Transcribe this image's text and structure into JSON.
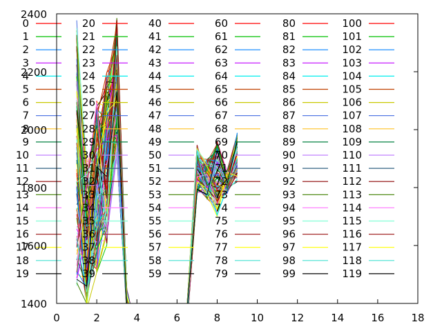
{
  "chart_data": {
    "type": "line",
    "title": "",
    "xlabel": "",
    "ylabel": "",
    "xlim": [
      0,
      18
    ],
    "ylim": [
      1400,
      2400
    ],
    "x_ticks": [
      "0",
      "2",
      "4",
      "6",
      "8",
      "10",
      "12",
      "14",
      "16",
      "18"
    ],
    "y_ticks": [
      "1400",
      "1600",
      "1800",
      "2000",
      "2200",
      "2400"
    ],
    "grid": false,
    "legend": {
      "placement": "top-left, six columns",
      "visible_names": [
        "0",
        "1",
        "2",
        "3",
        "4",
        "5",
        "6",
        "7",
        "8",
        "9",
        "10",
        "11",
        "12",
        "13",
        "14",
        "15",
        "16",
        "17",
        "18",
        "19",
        "20",
        "21",
        "22",
        "23",
        "24",
        "25",
        "26",
        "27",
        "28",
        "29",
        "30",
        "31",
        "32",
        "33",
        "34",
        "35",
        "36",
        "37",
        "38",
        "39",
        "40",
        "41",
        "42",
        "43",
        "44",
        "45",
        "46",
        "47",
        "48",
        "49",
        "50",
        "51",
        "52",
        "53",
        "54",
        "55",
        "56",
        "57",
        "58",
        "59",
        "60",
        "61",
        "62",
        "63",
        "64",
        "65",
        "66",
        "67",
        "68",
        "69",
        "70",
        "71",
        "72",
        "73",
        "74",
        "75",
        "76",
        "77",
        "78",
        "79",
        "80",
        "81",
        "82",
        "83",
        "84",
        "85",
        "86",
        "87",
        "88",
        "89",
        "90",
        "91",
        "92",
        "93",
        "94",
        "95",
        "96",
        "97",
        "98",
        "99",
        "100",
        "101",
        "102",
        "103",
        "104",
        "105",
        "106",
        "107",
        "108",
        "109",
        "110",
        "111",
        "112",
        "113",
        "114",
        "115",
        "116",
        "117",
        "118",
        "119"
      ],
      "colors": [
        "#ff0000",
        "#00c000",
        "#0080ff",
        "#c000ff",
        "#00eeee",
        "#c04000",
        "#c8c800",
        "#4169e1",
        "#ffc020",
        "#008040",
        "#c080ff",
        "#306080",
        "#8b0000",
        "#408000",
        "#ff80ff",
        "#7fffd4",
        "#a52a2a",
        "#ffff00",
        "#40e0d0",
        "#000000"
      ]
    },
    "series_note": "120 series numbered 0-119; values read approximately. Each series spans x=1..9.",
    "x": [
      1,
      1.5,
      2,
      2.5,
      3,
      3.5,
      4,
      4.5,
      5,
      5.5,
      6,
      6.5,
      7,
      7.5,
      8,
      8.5,
      9
    ],
    "band": {
      "lower": [
        1450,
        1380,
        1500,
        1600,
        1900,
        1350,
        1300,
        1300,
        1300,
        1300,
        1300,
        1320,
        1780,
        1760,
        1700,
        1780,
        1820
      ],
      "upper": [
        2380,
        1900,
        2100,
        2200,
        2390,
        1450,
        1300,
        1300,
        1300,
        1300,
        1300,
        1400,
        1950,
        1900,
        1960,
        1860,
        1990
      ]
    }
  }
}
